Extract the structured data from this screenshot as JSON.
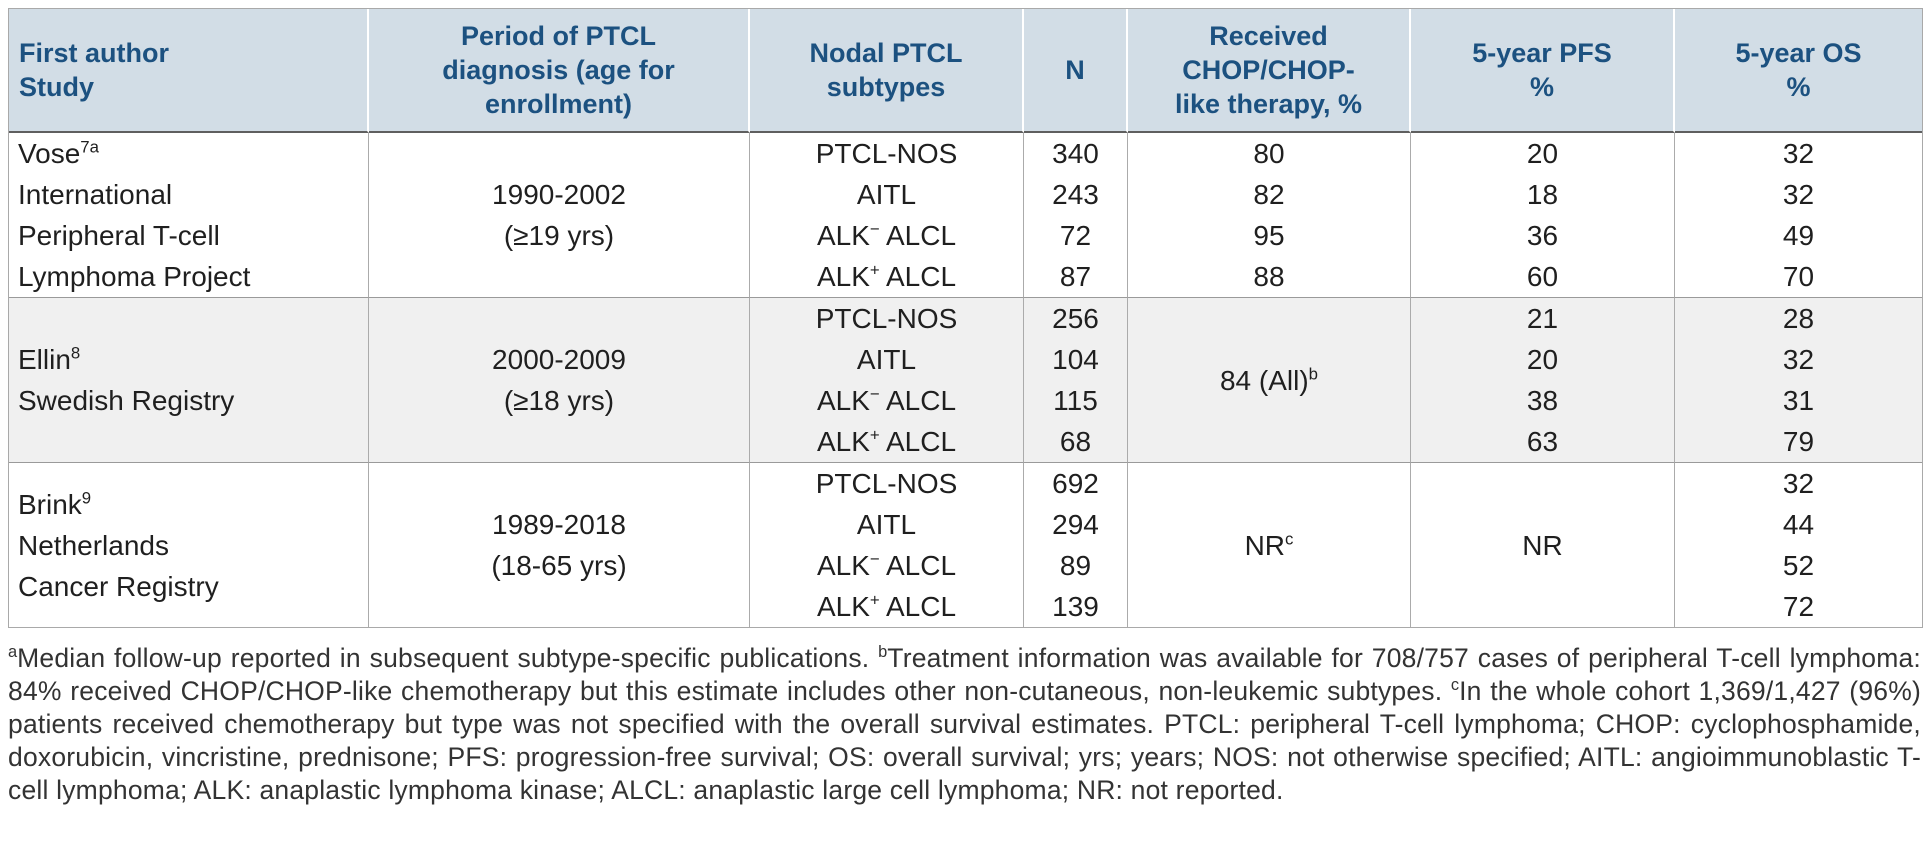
{
  "colors": {
    "header_bg": "#d2dde6",
    "header_text": "#1c5180",
    "body_text": "#1f1f1f",
    "footnote_text": "#333333",
    "stripe_bg": "#f0f0f0",
    "border_light": "#ababab",
    "border_sep": "#9a9a9a",
    "border_dark": "#5f5f5f",
    "border_outer": "#a9a9a9",
    "header_divider": "#ffffff"
  },
  "table": {
    "headers": [
      {
        "id": "study",
        "label": "First author\nStudy"
      },
      {
        "id": "period",
        "label": "Period of PTCL\ndiagnosis (age for\nenrollment)"
      },
      {
        "id": "subtype",
        "label": "Nodal PTCL\nsubtypes"
      },
      {
        "id": "n",
        "label": "N"
      },
      {
        "id": "chop",
        "label": "Received\nCHOP/CHOP-\nlike therapy, %"
      },
      {
        "id": "pfs",
        "label": "5-year PFS\n%"
      },
      {
        "id": "os",
        "label": "5-year OS\n%"
      }
    ],
    "studies": [
      {
        "zebra": false,
        "name_valign": "top",
        "name": [
          {
            "t": "Vose"
          },
          {
            "sup": "7a"
          },
          {
            "t": "\nInternational\nPeripheral T-cell\nLymphoma Project"
          }
        ],
        "period": [
          {
            "t": "1990-2002\n(≥19 yrs)"
          }
        ],
        "chop_merged": null,
        "pfs_merged": null,
        "rows": [
          {
            "subtype": [
              {
                "t": "PTCL-NOS"
              }
            ],
            "n": "340",
            "chop": "80",
            "pfs": "20",
            "os": "32"
          },
          {
            "subtype": [
              {
                "t": "AITL"
              }
            ],
            "n": "243",
            "chop": "82",
            "pfs": "18",
            "os": "32"
          },
          {
            "subtype": [
              {
                "t": "ALK"
              },
              {
                "sup": "−"
              },
              {
                "t": " ALCL"
              }
            ],
            "n": "72",
            "chop": "95",
            "pfs": "36",
            "os": "49"
          },
          {
            "subtype": [
              {
                "t": "ALK"
              },
              {
                "sup": "+"
              },
              {
                "t": " ALCL"
              }
            ],
            "n": "87",
            "chop": "88",
            "pfs": "60",
            "os": "70"
          }
        ]
      },
      {
        "zebra": true,
        "name_valign": "middle",
        "name": [
          {
            "t": "Ellin"
          },
          {
            "sup": "8"
          },
          {
            "t": "\nSwedish Registry"
          }
        ],
        "period": [
          {
            "t": "2000-2009\n(≥18 yrs)"
          }
        ],
        "chop_merged": [
          {
            "t": "84 (All)"
          },
          {
            "sup": "b"
          }
        ],
        "pfs_merged": null,
        "rows": [
          {
            "subtype": [
              {
                "t": "PTCL-NOS"
              }
            ],
            "n": "256",
            "pfs": "21",
            "os": "28"
          },
          {
            "subtype": [
              {
                "t": "AITL"
              }
            ],
            "n": "104",
            "pfs": "20",
            "os": "32"
          },
          {
            "subtype": [
              {
                "t": "ALK"
              },
              {
                "sup": "−"
              },
              {
                "t": " ALCL"
              }
            ],
            "n": "115",
            "pfs": "38",
            "os": "31"
          },
          {
            "subtype": [
              {
                "t": "ALK"
              },
              {
                "sup": "+"
              },
              {
                "t": " ALCL"
              }
            ],
            "n": "68",
            "pfs": "63",
            "os": "79"
          }
        ]
      },
      {
        "zebra": false,
        "name_valign": "middle",
        "name": [
          {
            "t": "Brink"
          },
          {
            "sup": "9"
          },
          {
            "t": "\nNetherlands\nCancer Registry"
          }
        ],
        "period": [
          {
            "t": "1989-2018\n(18-65 yrs)"
          }
        ],
        "chop_merged": [
          {
            "t": "NR"
          },
          {
            "sup": "c"
          }
        ],
        "pfs_merged": [
          {
            "t": "NR"
          }
        ],
        "rows": [
          {
            "subtype": [
              {
                "t": "PTCL-NOS"
              }
            ],
            "n": "692",
            "os": "32"
          },
          {
            "subtype": [
              {
                "t": "AITL"
              }
            ],
            "n": "294",
            "os": "44"
          },
          {
            "subtype": [
              {
                "t": "ALK"
              },
              {
                "sup": "−"
              },
              {
                "t": " ALCL"
              }
            ],
            "n": "89",
            "os": "52"
          },
          {
            "subtype": [
              {
                "t": "ALK"
              },
              {
                "sup": "+"
              },
              {
                "t": " ALCL"
              }
            ],
            "n": "139",
            "os": "72"
          }
        ]
      }
    ]
  },
  "footnote": {
    "segments": [
      {
        "sup": "a"
      },
      {
        "t": "Median follow-up reported in subsequent subtype-specific publications. "
      },
      {
        "sup": "b"
      },
      {
        "t": "Treatment information was available for 708/757 cases of peripheral T-cell lymphoma: 84% received CHOP/CHOP-like chemotherapy but this estimate includes other non-cutaneous, non-leukemic subtypes. "
      },
      {
        "sup": "c"
      },
      {
        "t": "In the whole cohort 1,369/1,427 (96%) patients received chemotherapy but type was not specified with the overall survival estimates. PTCL: peripheral T-cell lymphoma; CHOP: cyclophosphamide, doxorubicin, vincristine, prednisone; PFS: progression-free survival; OS: overall survival; yrs; years; NOS: not otherwise specified; AITL: angioimmunoblastic T-cell lymphoma; ALK: anaplastic lymphoma kinase; ALCL: anaplastic large cell lymphoma; NR: not reported."
      }
    ]
  }
}
